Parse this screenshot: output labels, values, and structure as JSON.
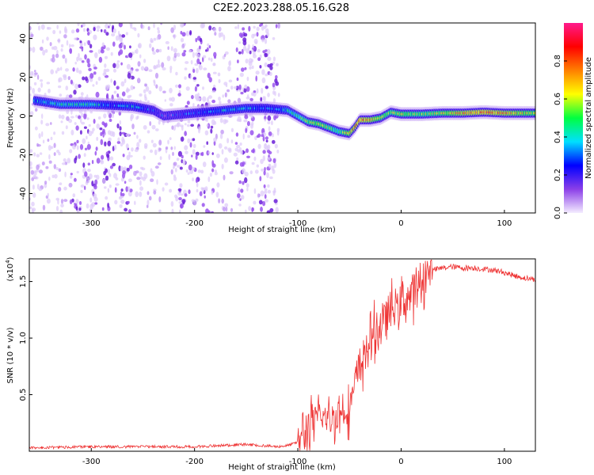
{
  "title": "C2E2.2023.288.05.16.G28",
  "colors": {
    "background": "#ffffff",
    "snr_line": "#ee3333",
    "frame": "#000000"
  },
  "chart_data": [
    {
      "type": "heatmap",
      "xlabel": "Height of straight line (km)",
      "ylabel": "Frequency (Hz)",
      "xlim": [
        -360,
        130
      ],
      "ylim": [
        -50,
        48
      ],
      "x_ticks": [
        -300,
        -200,
        -100,
        0,
        100
      ],
      "y_ticks": [
        -40,
        -20,
        0,
        20,
        40
      ],
      "colorbar": {
        "label": "Normalized spectral amplitude",
        "range": [
          0.0,
          1.0
        ],
        "ticks": [
          "0.0",
          "0.2",
          "0.4",
          "0.6",
          "0.8"
        ],
        "colormap": [
          "#f4ecff",
          "#8b3fe8",
          "#0000ff",
          "#00e0ff",
          "#00ff40",
          "#ffff00",
          "#ff8000",
          "#ff0000",
          "#ff1a8c"
        ]
      },
      "noise_x_range": [
        -360,
        -118
      ],
      "ridge": {
        "x": [
          -355,
          -330,
          -300,
          -280,
          -260,
          -240,
          -230,
          -210,
          -190,
          -170,
          -150,
          -130,
          -120,
          -110,
          -100,
          -90,
          -80,
          -70,
          -60,
          -50,
          -45,
          -40,
          -30,
          -20,
          -10,
          0,
          20,
          40,
          60,
          80,
          100,
          130
        ],
        "freq": [
          8,
          6,
          6,
          5.5,
          5,
          3,
          0,
          1,
          2,
          3,
          4,
          4,
          3.5,
          3,
          0,
          -3,
          -4,
          -6,
          -8,
          -9,
          -6,
          -2,
          -2,
          -1,
          2,
          1,
          1,
          1.5,
          1.5,
          2,
          1.5,
          1.5
        ],
        "amplitude": [
          0.35,
          0.4,
          0.4,
          0.3,
          0.35,
          0.25,
          0.2,
          0.25,
          0.3,
          0.35,
          0.35,
          0.3,
          0.3,
          0.4,
          0.45,
          0.55,
          0.6,
          0.55,
          0.5,
          0.65,
          0.7,
          0.75,
          0.7,
          0.6,
          0.55,
          0.6,
          0.55,
          0.6,
          0.7,
          0.75,
          0.7,
          0.6
        ]
      }
    },
    {
      "type": "line",
      "xlabel": "Height of straight line (km)",
      "ylabel": "SNR (10 * v/v)",
      "scale_label": "(x10",
      "scale_exponent": "4",
      "scale_close": ")",
      "xlim": [
        -360,
        130
      ],
      "ylim": [
        0,
        1.7
      ],
      "x_ticks": [
        -300,
        -200,
        -100,
        0,
        100
      ],
      "y_ticks": [
        "0.5",
        "1.0",
        "1.5"
      ],
      "series": [
        {
          "x": [
            -360,
            -300,
            -250,
            -200,
            -150,
            -120,
            -110,
            -100,
            -90,
            -80,
            -70,
            -60,
            -50,
            -45,
            -40,
            -35,
            -30,
            -25,
            -20,
            -15,
            -10,
            -5,
            0,
            10,
            20,
            30,
            40,
            50,
            60,
            70,
            80,
            90,
            100,
            110,
            120,
            130
          ],
          "y": [
            0.03,
            0.04,
            0.04,
            0.04,
            0.06,
            0.04,
            0.05,
            0.08,
            0.2,
            0.3,
            0.28,
            0.33,
            0.4,
            0.55,
            0.75,
            0.85,
            0.98,
            1.05,
            1.1,
            1.18,
            1.25,
            1.28,
            1.33,
            1.38,
            1.5,
            1.6,
            1.62,
            1.63,
            1.62,
            1.62,
            1.61,
            1.6,
            1.58,
            1.55,
            1.53,
            1.52
          ]
        }
      ]
    }
  ]
}
